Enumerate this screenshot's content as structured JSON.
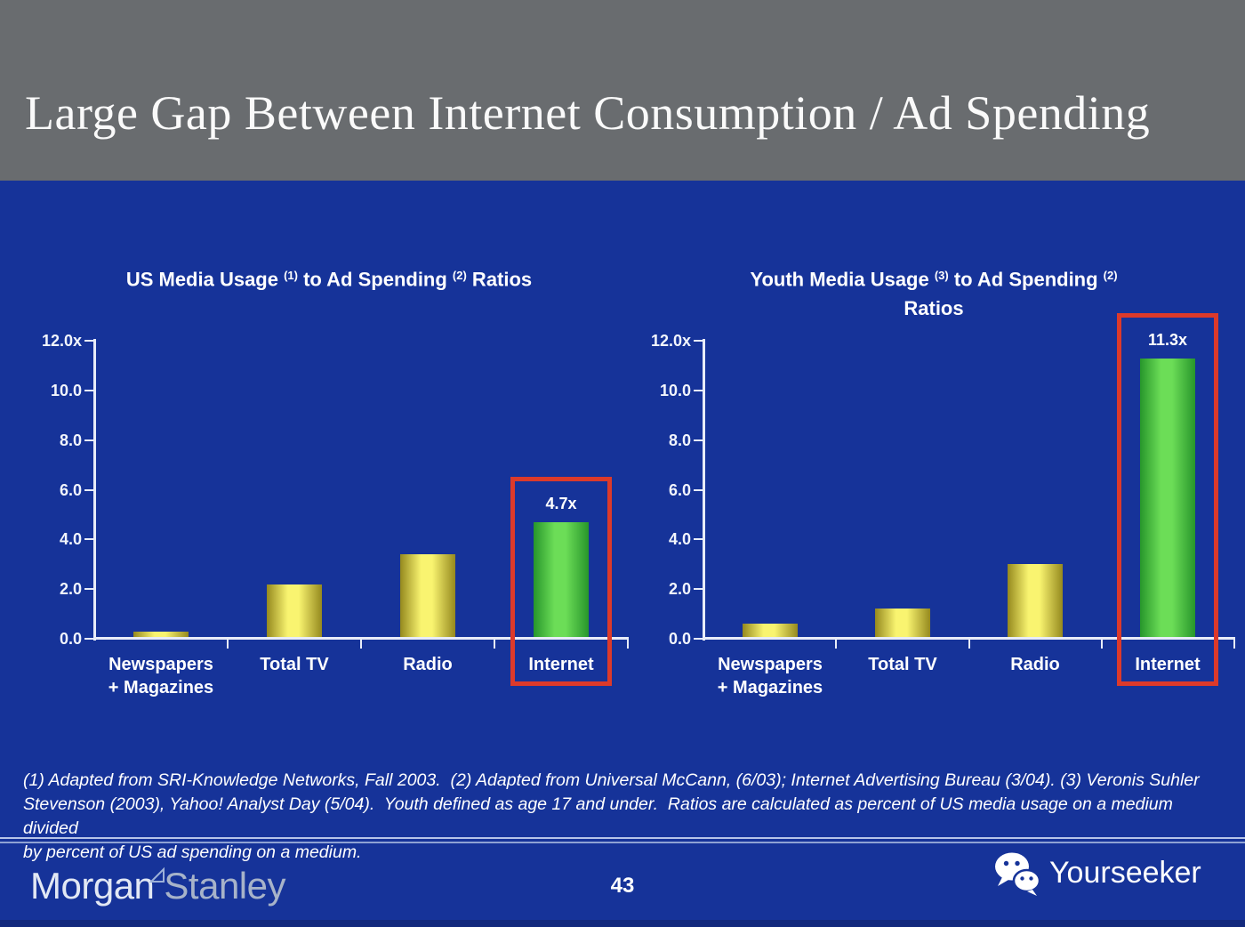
{
  "slide": {
    "title": "Large Gap Between Internet Consumption / Ad Spending",
    "page_number": "43",
    "footnote_lines": [
      "(1) Adapted from SRI-Knowledge Networks, Fall 2003.  (2) Adapted from Universal McCann, (6/03); Internet Advertising Bureau (3/04). (3) Veronis Suhler",
      "Stevenson (2003), Yahoo! Analyst Day (5/04).  Youth defined as age 17 and under.  Ratios are calculated as percent of US media usage on a medium divided",
      "by percent of US ad spending on a medium."
    ],
    "footer": {
      "brand_morgan": "Morgan",
      "brand_stanley": "Stanley",
      "watermark": "Yourseeker"
    }
  },
  "chart_data": [
    {
      "type": "bar",
      "title": "US Media Usage (1) to Ad Spending (2) Ratios",
      "title_segments": [
        {
          "text": "US Media Usage "
        },
        {
          "sup": "(1)"
        },
        {
          "text": " to Ad Spending "
        },
        {
          "sup": "(2)"
        },
        {
          "text": " Ratios"
        }
      ],
      "categories": [
        "Newspapers\n+ Magazines",
        "Total TV",
        "Radio",
        "Internet"
      ],
      "values": [
        0.3,
        2.2,
        3.4,
        4.7
      ],
      "bar_colors": [
        "yellow",
        "yellow",
        "yellow",
        "green"
      ],
      "value_labels": [
        "",
        "",
        "",
        "4.7x"
      ],
      "highlight_index": 3,
      "y_ticks": [
        "12.0x",
        "10.0",
        "8.0",
        "6.0",
        "4.0",
        "2.0",
        "0.0"
      ],
      "ylim": [
        0,
        12
      ],
      "grid": false,
      "legend": "none"
    },
    {
      "type": "bar",
      "title": "Youth Media Usage (3) to Ad Spending (2) Ratios",
      "title_segments": [
        {
          "text": "Youth Media Usage "
        },
        {
          "sup": "(3)"
        },
        {
          "text": " to Ad Spending "
        },
        {
          "sup": "(2)"
        },
        {
          "br": true
        },
        {
          "text": "Ratios"
        }
      ],
      "categories": [
        "Newspapers\n+ Magazines",
        "Total TV",
        "Radio",
        "Internet"
      ],
      "values": [
        0.6,
        1.2,
        3.0,
        11.3
      ],
      "bar_colors": [
        "yellow",
        "yellow",
        "yellow",
        "green"
      ],
      "value_labels": [
        "",
        "",
        "",
        "11.3x"
      ],
      "highlight_index": 3,
      "y_ticks": [
        "12.0x",
        "10.0",
        "8.0",
        "6.0",
        "4.0",
        "2.0",
        "0.0"
      ],
      "ylim": [
        0,
        12
      ],
      "grid": false,
      "legend": "none"
    }
  ],
  "colors": {
    "background": "#163399",
    "header_bg": "#696c6f",
    "axis": "#e8ecf8",
    "bar_yellow_edge": "#95891e",
    "bar_yellow_center": "#f9f470",
    "bar_green_edge": "#27962b",
    "bar_green_center": "#6cdd57",
    "highlight_box": "#dc3a2b"
  }
}
